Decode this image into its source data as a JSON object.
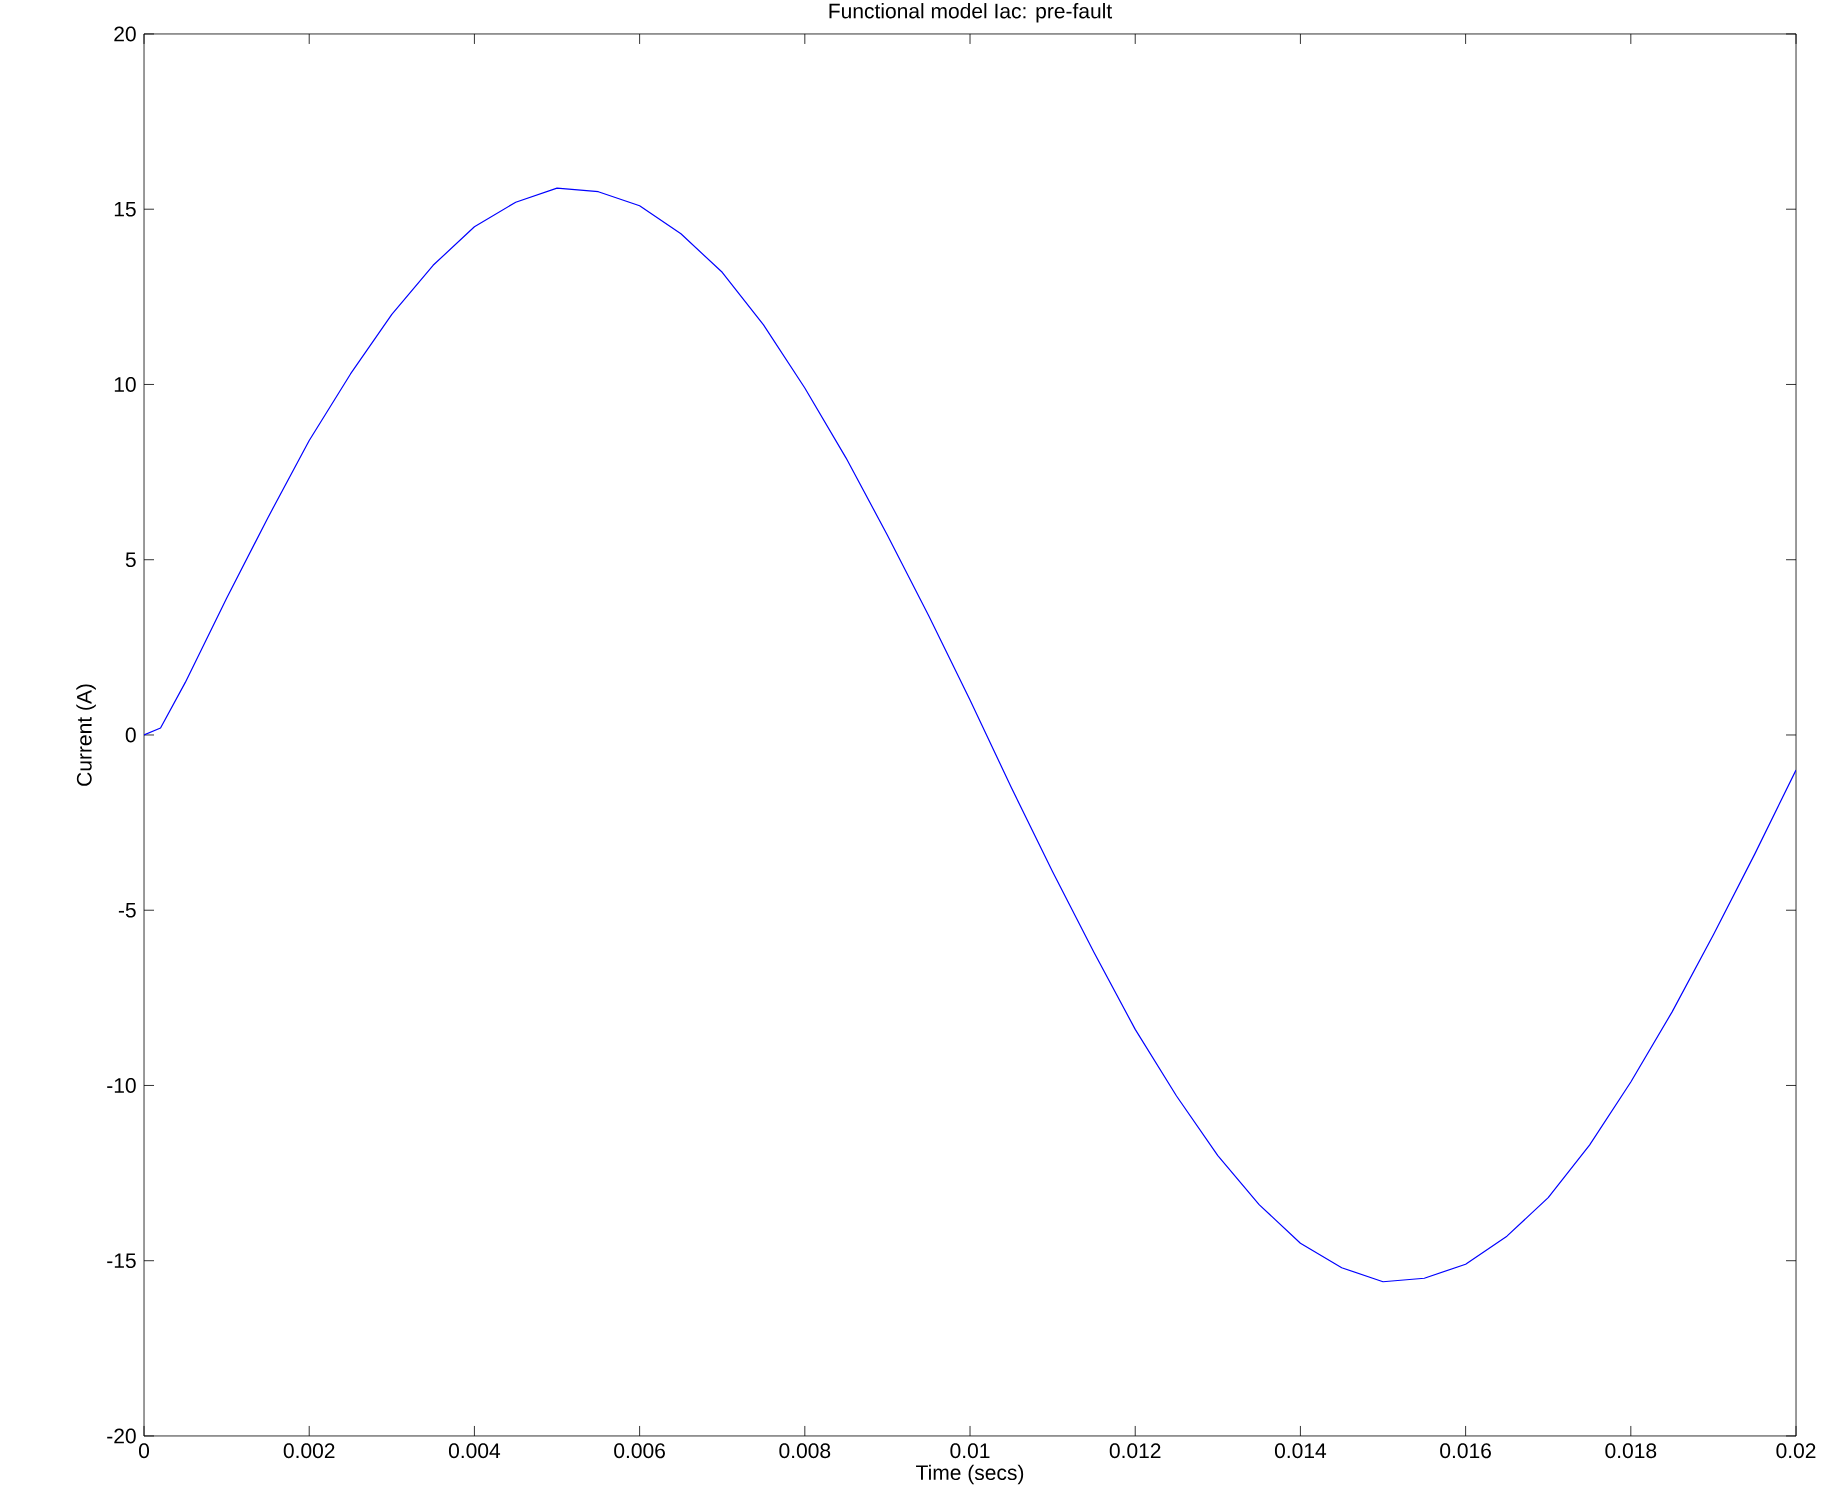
{
  "chart_data": {
    "type": "line",
    "title": "Functional model Iac: pre-fault",
    "xlabel": "Time (secs)",
    "ylabel": "Current (A)",
    "xlim": [
      0,
      0.02
    ],
    "ylim": [
      -20,
      20
    ],
    "xticks": [
      0,
      0.002,
      0.004,
      0.006,
      0.008,
      0.01,
      0.012,
      0.014,
      0.016,
      0.018,
      0.02
    ],
    "yticks": [
      -20,
      -15,
      -10,
      -5,
      0,
      5,
      10,
      15,
      20
    ],
    "marker": "none",
    "line_style": "solid",
    "series": [
      {
        "color": "#0000ff",
        "x": [
          0,
          0.0002,
          0.0005,
          0.001,
          0.0015,
          0.002,
          0.0025,
          0.003,
          0.0035,
          0.004,
          0.0045,
          0.005,
          0.0055,
          0.006,
          0.0065,
          0.007,
          0.0075,
          0.008,
          0.0085,
          0.009,
          0.0095,
          0.01,
          0.0105,
          0.011,
          0.0115,
          0.012,
          0.0125,
          0.013,
          0.0135,
          0.014,
          0.0145,
          0.015,
          0.0155,
          0.016,
          0.0165,
          0.017,
          0.0175,
          0.018,
          0.0185,
          0.019,
          0.0195,
          0.02
        ],
        "values": [
          0,
          0.2,
          1.5,
          3.9,
          6.2,
          8.4,
          10.3,
          12.0,
          13.4,
          14.5,
          15.2,
          15.6,
          15.5,
          15.1,
          14.3,
          13.2,
          11.7,
          9.9,
          7.9,
          5.7,
          3.4,
          1.0,
          -1.5,
          -3.9,
          -6.2,
          -8.4,
          -10.3,
          -12.0,
          -13.4,
          -14.5,
          -15.2,
          -15.6,
          -15.5,
          -15.1,
          -14.3,
          -13.2,
          -11.7,
          -9.9,
          -7.9,
          -5.7,
          -3.4,
          -1.0
        ]
      }
    ]
  }
}
